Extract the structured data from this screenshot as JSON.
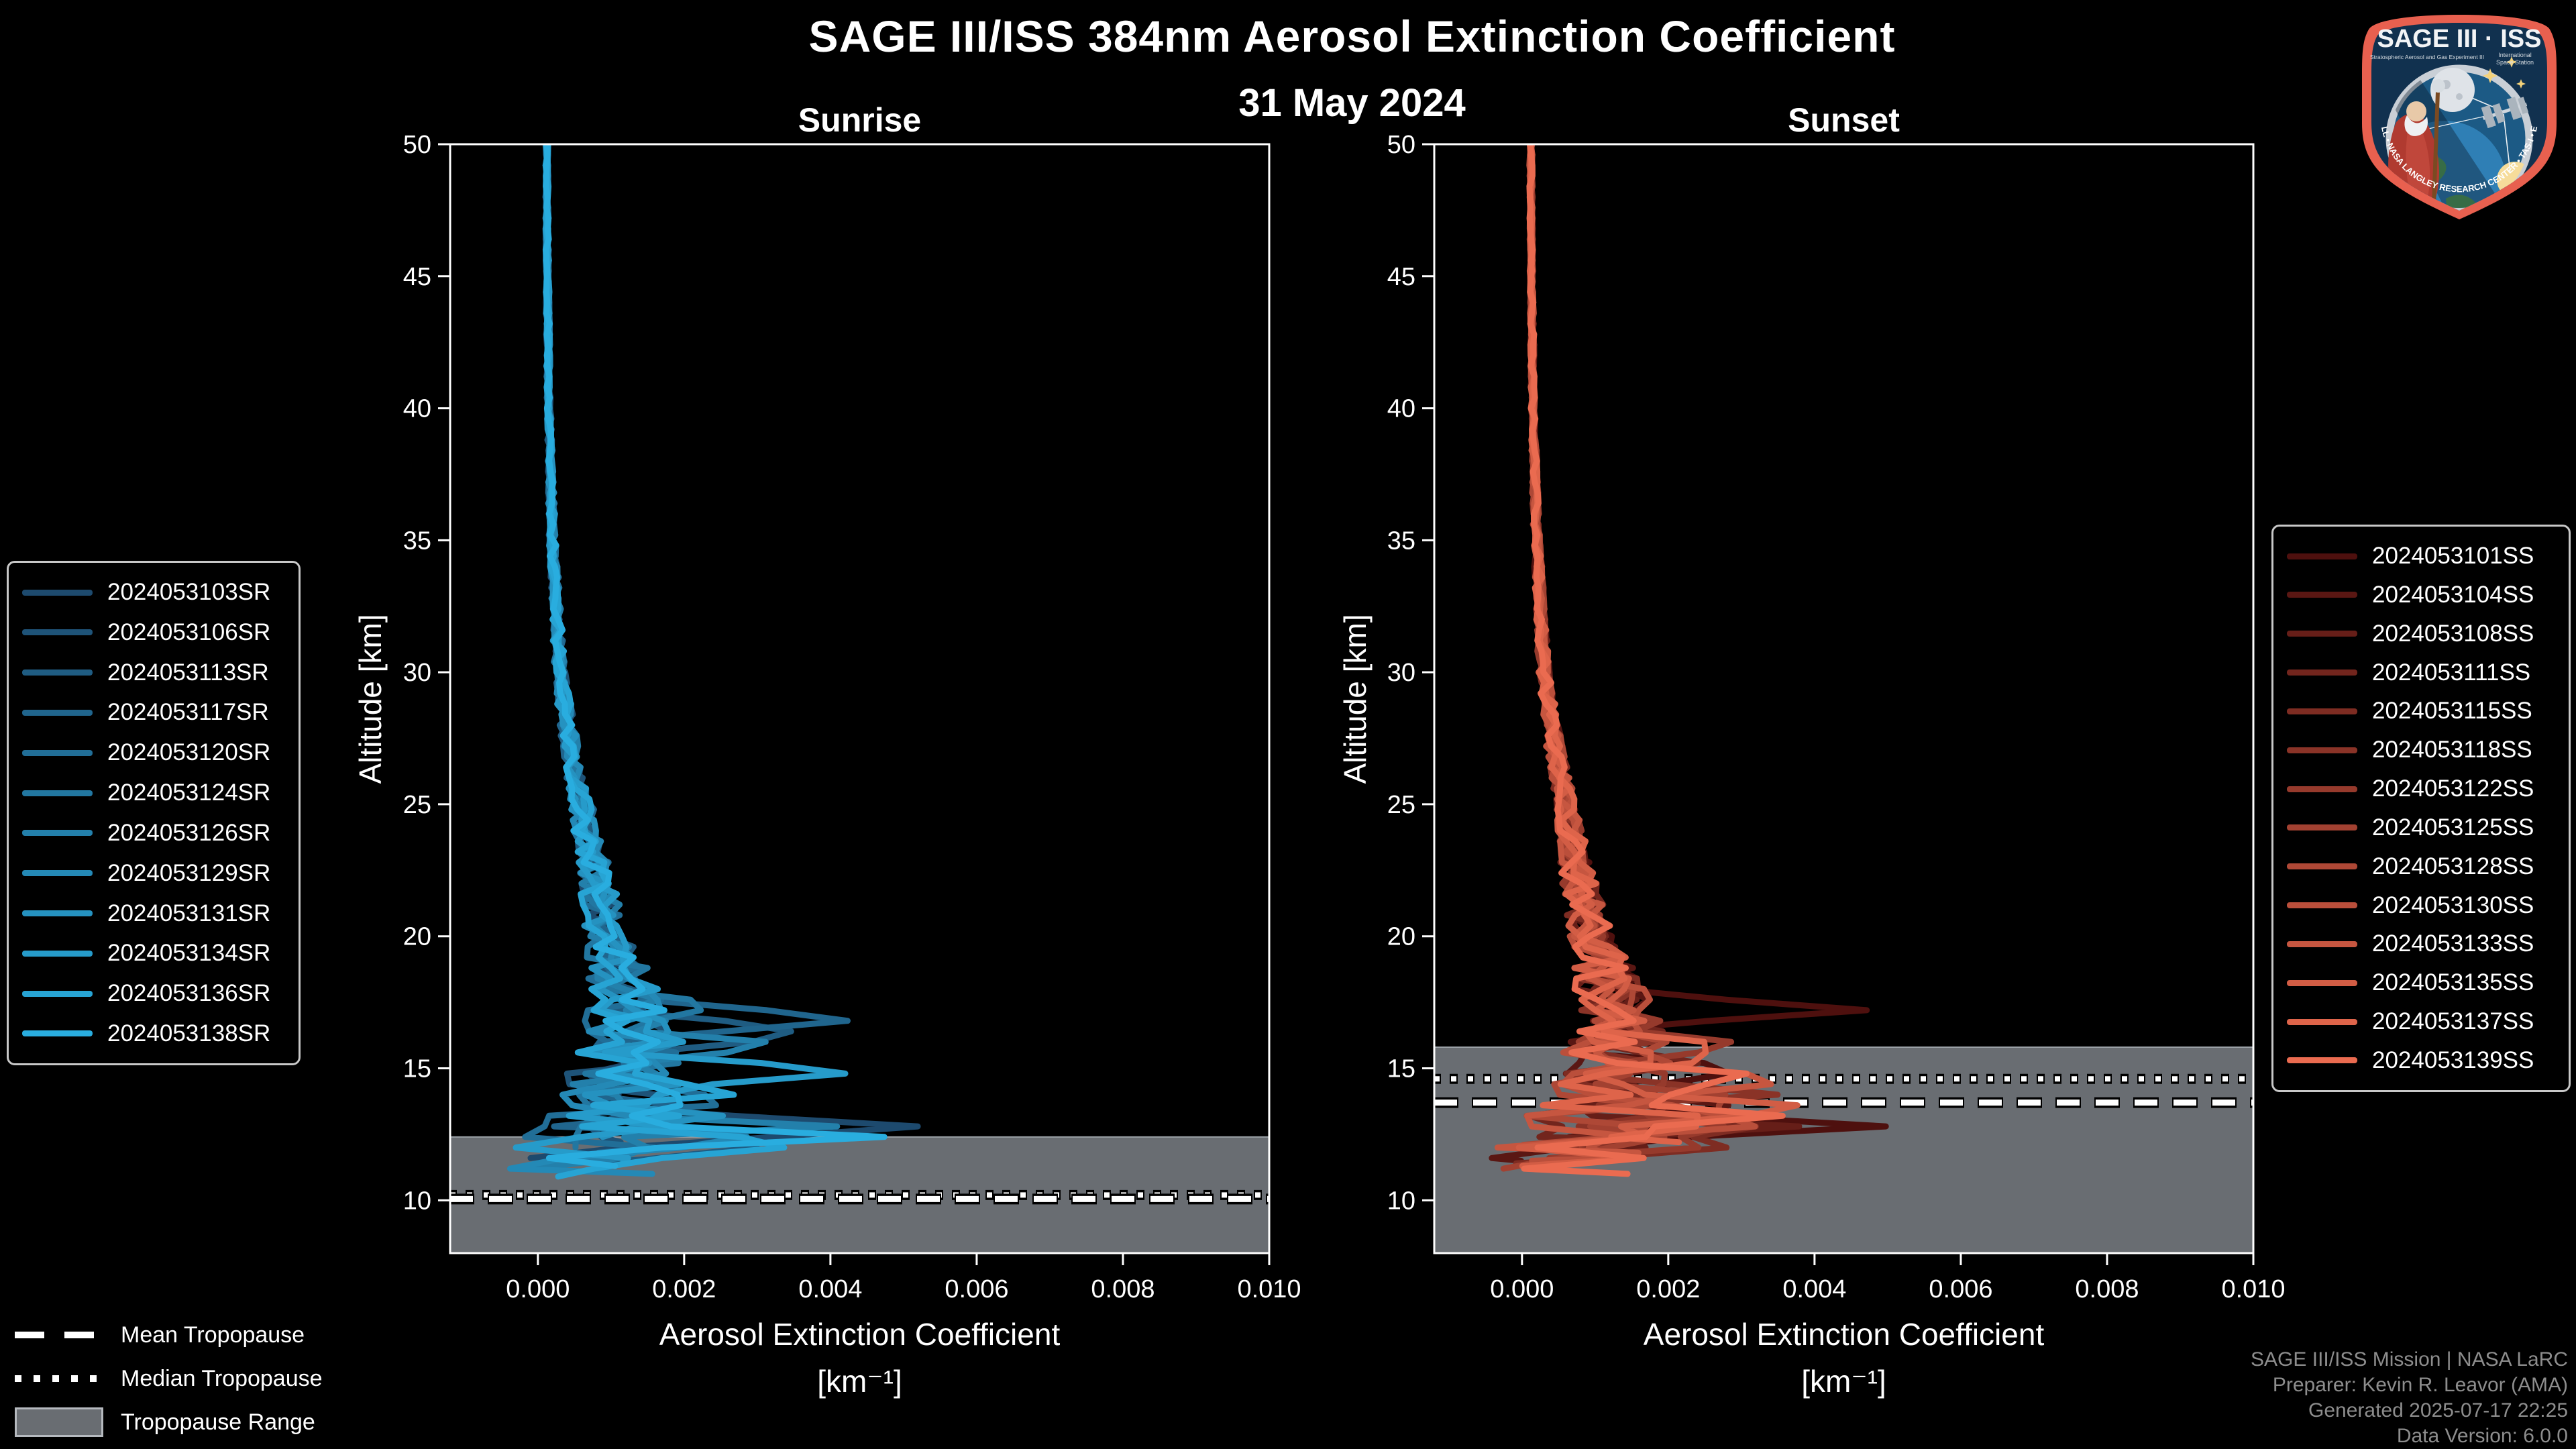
{
  "header": {
    "title": "SAGE III/ISS 384nm Aerosol Extinction Coefficient",
    "date": "31 May 2024"
  },
  "axes": {
    "y_label": "Altitude [km]",
    "x_label": "Aerosol Extinction Coefficient",
    "x_unit": "[km⁻¹]"
  },
  "tropopause_legend": {
    "mean_label": "Mean Tropopause",
    "median_label": "Median Tropopause",
    "range_label": "Tropopause Range"
  },
  "attribution": {
    "line1": "SAGE III/ISS Mission | NASA LaRC",
    "line2": "Preparer: Kevin R. Leavor (AMA)",
    "line3": "Generated 2025-07-17 22:25",
    "line4": "Data Version: 6.0.0"
  },
  "logo": {
    "title": "SAGE III · ISS",
    "subtitle_left": "Stratospheric Aerosol and Gas Experiment III",
    "subtitle_right_1": "International",
    "subtitle_right_2": "Space Station",
    "bottom_text": "BALL • NASA LANGLEY RESEARCH CENTER • TAS-I • ESA"
  },
  "chart_data": [
    {
      "type": "line",
      "title": "Sunrise",
      "xlabel": "Aerosol Extinction Coefficient [km⁻¹]",
      "ylabel": "Altitude [km]",
      "xlim": [
        -0.0012,
        0.01
      ],
      "ylim": [
        8,
        50
      ],
      "xticks": [
        0,
        0.002,
        0.004,
        0.006,
        0.008,
        0.01
      ],
      "xtick_labels": [
        "0.000",
        "0.002",
        "0.004",
        "0.006",
        "0.008",
        "0.010"
      ],
      "yticks": [
        50,
        45,
        40,
        35,
        30,
        25,
        20,
        15,
        10
      ],
      "ytick_labels": [
        "50",
        "45",
        "40",
        "35",
        "30",
        "25",
        "20",
        "15",
        "10"
      ],
      "grid": false,
      "legend_position": "outside-left",
      "line_color_scheme": "dark-to-light blue",
      "tropopause": {
        "mean_km": 10.05,
        "median_km": 10.2,
        "range_top_km": 12.4,
        "range_bottom_km": 8,
        "band_color": "#696d72"
      },
      "base_profile_km_vs_ext": [
        [
          50,
          0.00012
        ],
        [
          45,
          0.00013
        ],
        [
          40,
          0.00015
        ],
        [
          35,
          0.0002
        ],
        [
          30,
          0.0003
        ],
        [
          27,
          0.00045
        ],
        [
          25,
          0.0006
        ],
        [
          22,
          0.0008
        ],
        [
          20,
          0.00095
        ],
        [
          18,
          0.0012
        ],
        [
          16,
          0.0013
        ],
        [
          14,
          0.0011
        ],
        [
          12,
          0.0008
        ],
        [
          10,
          0.0004
        ]
      ],
      "noise_amplitude_km_vs_ext": [
        [
          50,
          2e-05
        ],
        [
          40,
          3e-05
        ],
        [
          35,
          5e-05
        ],
        [
          30,
          8e-05
        ],
        [
          25,
          0.00015
        ],
        [
          22,
          0.00025
        ],
        [
          20,
          0.0003
        ],
        [
          18,
          0.0005
        ],
        [
          16,
          0.0007
        ],
        [
          14,
          0.0009
        ],
        [
          12,
          0.0012
        ],
        [
          10,
          0.0012
        ]
      ],
      "series": [
        {
          "name": "2024053103SR",
          "color": "#1d4a6e",
          "seed": 101,
          "min_alt_km": 11.6,
          "peaks_km_vs_ext": [
            [
              12.8,
              0.0042
            ]
          ]
        },
        {
          "name": "2024053106SR",
          "color": "#1e5378",
          "seed": 102,
          "min_alt_km": 12.2,
          "peaks_km_vs_ext": [
            [
              13.6,
              0.0026
            ]
          ]
        },
        {
          "name": "2024053113SR",
          "color": "#1f5c82",
          "seed": 103,
          "min_alt_km": 11.4,
          "peaks_km_vs_ext": [
            [
              16.4,
              0.004
            ],
            [
              12.4,
              0.003
            ]
          ]
        },
        {
          "name": "2024053117SR",
          "color": "#20658d",
          "seed": 104,
          "min_alt_km": 12.6,
          "peaks_km_vs_ext": [
            [
              16.8,
              0.0047
            ]
          ]
        },
        {
          "name": "2024053120SR",
          "color": "#216e97",
          "seed": 105,
          "min_alt_km": 11.8,
          "peaks_km_vs_ext": [
            [
              14.0,
              0.003
            ]
          ]
        },
        {
          "name": "2024053124SR",
          "color": "#2277a1",
          "seed": 106,
          "min_alt_km": 12.0,
          "peaks_km_vs_ext": [
            [
              17.2,
              0.0022
            ]
          ]
        },
        {
          "name": "2024053126SR",
          "color": "#2380ab",
          "seed": 107,
          "min_alt_km": 11.2,
          "peaks_km_vs_ext": [
            [
              16.0,
              0.0026
            ],
            [
              12.8,
              0.0034
            ]
          ]
        },
        {
          "name": "2024053129SR",
          "color": "#2489b6",
          "seed": 108,
          "min_alt_km": 11.0,
          "peaks_km_vs_ext": [
            [
              12.4,
              0.0032
            ]
          ]
        },
        {
          "name": "2024053131SR",
          "color": "#2592c0",
          "seed": 109,
          "min_alt_km": 12.4,
          "peaks_km_vs_ext": [
            [
              13.2,
              0.0027
            ]
          ]
        },
        {
          "name": "2024053134SR",
          "color": "#269bca",
          "seed": 110,
          "min_alt_km": 11.5,
          "peaks_km_vs_ext": [
            [
              14.8,
              0.0035
            ]
          ]
        },
        {
          "name": "2024053136SR",
          "color": "#27a4d4",
          "seed": 111,
          "min_alt_km": 10.9,
          "peaks_km_vs_ext": [
            [
              14.0,
              0.0023
            ],
            [
              12.0,
              0.003
            ]
          ]
        },
        {
          "name": "2024053138SR",
          "color": "#29addf",
          "seed": 112,
          "min_alt_km": 11.3,
          "peaks_km_vs_ext": [
            [
              12.4,
              0.0045
            ],
            [
              16.0,
              0.0021
            ]
          ]
        }
      ]
    },
    {
      "type": "line",
      "title": "Sunset",
      "xlabel": "Aerosol Extinction Coefficient [km⁻¹]",
      "ylabel": "Altitude [km]",
      "xlim": [
        -0.0012,
        0.01
      ],
      "ylim": [
        8,
        50
      ],
      "xticks": [
        0,
        0.002,
        0.004,
        0.006,
        0.008,
        0.01
      ],
      "xtick_labels": [
        "0.000",
        "0.002",
        "0.004",
        "0.006",
        "0.008",
        "0.010"
      ],
      "yticks": [
        50,
        45,
        40,
        35,
        30,
        25,
        20,
        15,
        10
      ],
      "ytick_labels": [
        "50",
        "45",
        "40",
        "35",
        "30",
        "25",
        "20",
        "15",
        "10"
      ],
      "grid": false,
      "legend_position": "outside-right",
      "line_color_scheme": "dark-to-light red",
      "tropopause": {
        "mean_km": 13.7,
        "median_km": 14.6,
        "range_top_km": 15.8,
        "range_bottom_km": 8,
        "band_color": "#696d72"
      },
      "base_profile_km_vs_ext": [
        [
          50,
          0.00012
        ],
        [
          45,
          0.00013
        ],
        [
          40,
          0.00015
        ],
        [
          35,
          0.0002
        ],
        [
          30,
          0.0003
        ],
        [
          27,
          0.00045
        ],
        [
          25,
          0.0006
        ],
        [
          22,
          0.0008
        ],
        [
          20,
          0.00095
        ],
        [
          18,
          0.0012
        ],
        [
          16,
          0.0013
        ],
        [
          14,
          0.0011
        ],
        [
          12,
          0.0008
        ],
        [
          10,
          0.0004
        ]
      ],
      "noise_amplitude_km_vs_ext": [
        [
          50,
          2e-05
        ],
        [
          40,
          3e-05
        ],
        [
          35,
          5e-05
        ],
        [
          30,
          8e-05
        ],
        [
          25,
          0.00015
        ],
        [
          22,
          0.00025
        ],
        [
          20,
          0.0003
        ],
        [
          18,
          0.0005
        ],
        [
          16,
          0.0007
        ],
        [
          14,
          0.0009
        ],
        [
          12,
          0.0012
        ],
        [
          10,
          0.0012
        ]
      ],
      "series": [
        {
          "name": "2024053101SS",
          "color": "#4e100e",
          "seed": 201,
          "min_alt_km": 11.8,
          "peaks_km_vs_ext": [
            [
              17.2,
              0.0044
            ],
            [
              14.8,
              0.0036
            ],
            [
              12.8,
              0.004
            ]
          ]
        },
        {
          "name": "2024053104SS",
          "color": "#5a1713",
          "seed": 202,
          "min_alt_km": 11.5,
          "peaks_km_vs_ext": [
            [
              13.2,
              0.003
            ]
          ]
        },
        {
          "name": "2024053108SS",
          "color": "#661e18",
          "seed": 203,
          "min_alt_km": 11.9,
          "peaks_km_vs_ext": [
            [
              12.8,
              0.0028
            ]
          ]
        },
        {
          "name": "2024053111SS",
          "color": "#72251d",
          "seed": 204,
          "min_alt_km": 12.3,
          "peaks_km_vs_ext": [
            [
              15.2,
              0.0022
            ]
          ]
        },
        {
          "name": "2024053115SS",
          "color": "#7e2c22",
          "seed": 205,
          "min_alt_km": 11.4,
          "peaks_km_vs_ext": [
            [
              12.4,
              0.0034
            ]
          ]
        },
        {
          "name": "2024053118SS",
          "color": "#8a3327",
          "seed": 206,
          "min_alt_km": 12.0,
          "peaks_km_vs_ext": [
            [
              14.0,
              0.0027
            ]
          ]
        },
        {
          "name": "2024053122SS",
          "color": "#963a2c",
          "seed": 207,
          "min_alt_km": 11.6,
          "peaks_km_vs_ext": [
            [
              16.0,
              0.0024
            ],
            [
              12.4,
              0.003
            ]
          ]
        },
        {
          "name": "2024053125SS",
          "color": "#a24131",
          "seed": 208,
          "min_alt_km": 11.2,
          "peaks_km_vs_ext": [
            [
              13.6,
              0.003
            ]
          ]
        },
        {
          "name": "2024053128SS",
          "color": "#ae4836",
          "seed": 209,
          "min_alt_km": 12.1,
          "peaks_km_vs_ext": [
            [
              15.2,
              0.0026
            ]
          ]
        },
        {
          "name": "2024053130SS",
          "color": "#ba4f3b",
          "seed": 210,
          "min_alt_km": 11.5,
          "peaks_km_vs_ext": [
            [
              12.8,
              0.0031
            ]
          ]
        },
        {
          "name": "2024053133SS",
          "color": "#c65640",
          "seed": 211,
          "min_alt_km": 11.8,
          "peaks_km_vs_ext": [
            [
              14.4,
              0.0034
            ]
          ]
        },
        {
          "name": "2024053135SS",
          "color": "#d25d45",
          "seed": 212,
          "min_alt_km": 11.3,
          "peaks_km_vs_ext": [
            [
              13.6,
              0.004
            ]
          ]
        },
        {
          "name": "2024053137SS",
          "color": "#de644a",
          "seed": 213,
          "min_alt_km": 12.2,
          "peaks_km_vs_ext": [
            [
              15.6,
              0.0023
            ],
            [
              12.8,
              0.0033
            ]
          ]
        },
        {
          "name": "2024053139SS",
          "color": "#ea6b50",
          "seed": 214,
          "min_alt_km": 11.0,
          "peaks_km_vs_ext": [
            [
              13.2,
              0.0036
            ],
            [
              14.8,
              0.0028
            ]
          ]
        }
      ]
    }
  ]
}
